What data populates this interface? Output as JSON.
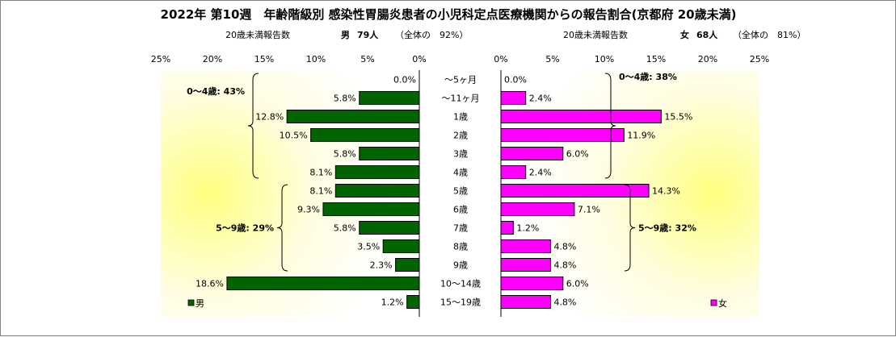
{
  "chart_data": {
    "type": "bar",
    "orientation": "horizontal",
    "title": "2022年 第10週　年齢階級別 感染性胃腸炎患者の小児科定点医療機関からの報告割合(京都府 20歳未満)",
    "categories": [
      "～5ヶ月",
      "～11ヶ月",
      "1歳",
      "2歳",
      "3歳",
      "4歳",
      "5歳",
      "6歳",
      "7歳",
      "8歳",
      "9歳",
      "10～14歳",
      "15～19歳"
    ],
    "panels": [
      {
        "side": "left",
        "subtitle_label": "20歳未満報告数",
        "subtitle_group": "男",
        "subtitle_count": "79人",
        "subtitle_share": "（全体の　92%）",
        "legend": "男",
        "color": "#006400",
        "xlim": [
          0,
          25
        ],
        "ticks": [
          "25%",
          "20%",
          "15%",
          "10%",
          "5%",
          "0%"
        ],
        "values": [
          0.0,
          5.8,
          12.8,
          10.5,
          5.8,
          8.1,
          8.1,
          9.3,
          5.8,
          3.5,
          2.3,
          18.6,
          1.2
        ],
        "value_labels": [
          "0.0%",
          "5.8%",
          "12.8%",
          "10.5%",
          "5.8%",
          "8.1%",
          "8.1%",
          "9.3%",
          "5.8%",
          "3.5%",
          "2.3%",
          "18.6%",
          "1.2%"
        ],
        "annotations": [
          {
            "text": "0～4歳: 43%",
            "from": 0,
            "to": 5
          },
          {
            "text": "5～9歳: 29%",
            "from": 6,
            "to": 10
          }
        ]
      },
      {
        "side": "right",
        "subtitle_label": "20歳未満報告数",
        "subtitle_group": "女",
        "subtitle_count": "68人",
        "subtitle_share": "（全体の　81%）",
        "legend": "女",
        "color": "#ff00ff",
        "xlim": [
          0,
          25
        ],
        "ticks": [
          "0%",
          "5%",
          "10%",
          "15%",
          "20%",
          "25%"
        ],
        "values": [
          0.0,
          2.4,
          15.5,
          11.9,
          6.0,
          2.4,
          14.3,
          7.1,
          1.2,
          4.8,
          4.8,
          6.0,
          4.8
        ],
        "value_labels": [
          "0.0%",
          "2.4%",
          "15.5%",
          "11.9%",
          "6.0%",
          "2.4%",
          "14.3%",
          "7.1%",
          "1.2%",
          "4.8%",
          "4.8%",
          "6.0%",
          "4.8%"
        ],
        "annotations": [
          {
            "text": "0～4歳: 38%",
            "from": 0,
            "to": 5
          },
          {
            "text": "5～9歳: 32%",
            "from": 6,
            "to": 10
          }
        ]
      }
    ]
  }
}
